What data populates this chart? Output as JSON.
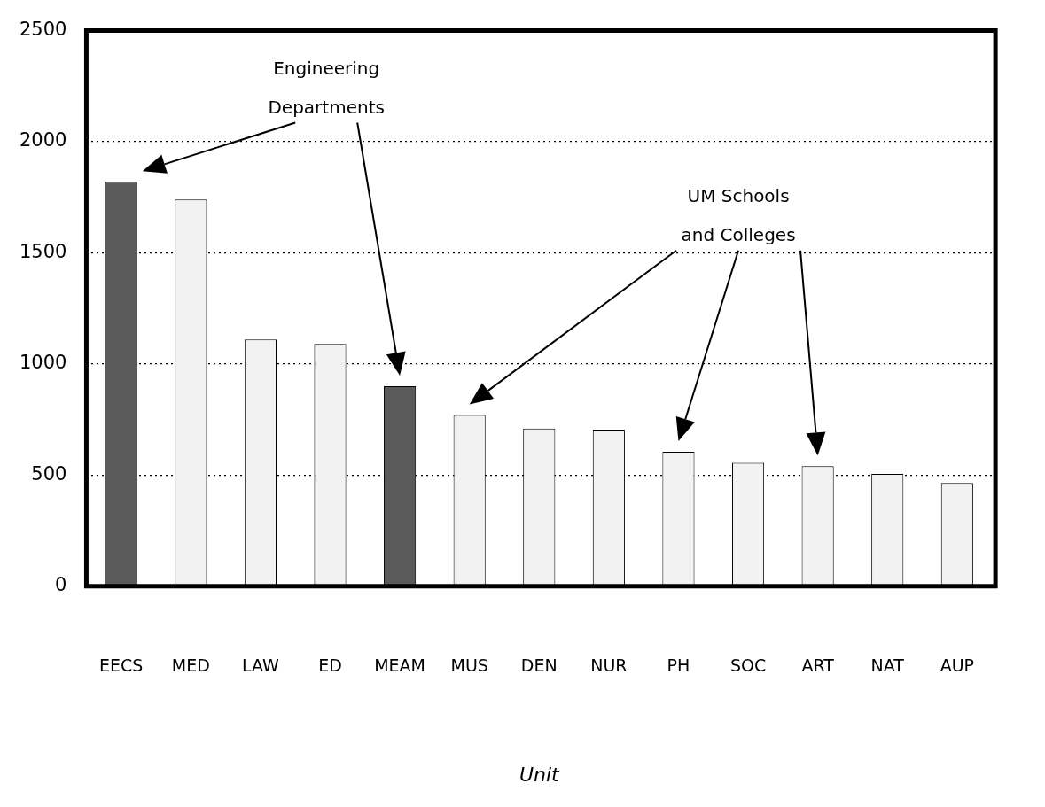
{
  "chart_data": {
    "type": "bar",
    "xlabel": "Unit",
    "categories": [
      "EECS",
      "MED",
      "LAW",
      "ED",
      "MEAM",
      "MUS",
      "DEN",
      "NUR",
      "PH",
      "SOC",
      "ART",
      "NAT",
      "AUP"
    ],
    "values": [
      1820,
      1740,
      1110,
      1090,
      900,
      770,
      710,
      705,
      605,
      555,
      540,
      505,
      465
    ],
    "colors": [
      "#5a5a5a",
      "#f2f2f2",
      "#f2f2f2",
      "#f2f2f2",
      "#5a5a5a",
      "#f2f2f2",
      "#f2f2f2",
      "#f2f2f2",
      "#f2f2f2",
      "#f2f2f2",
      "#f2f2f2",
      "#f2f2f2",
      "#f2f2f2"
    ],
    "ylim": [
      0,
      2500
    ],
    "yticks": [
      0,
      500,
      1000,
      1500,
      2000,
      2500
    ],
    "grid": "y",
    "legend": false,
    "annotations": [
      "Engineering Departments",
      "UM Schools and Colleges"
    ]
  }
}
